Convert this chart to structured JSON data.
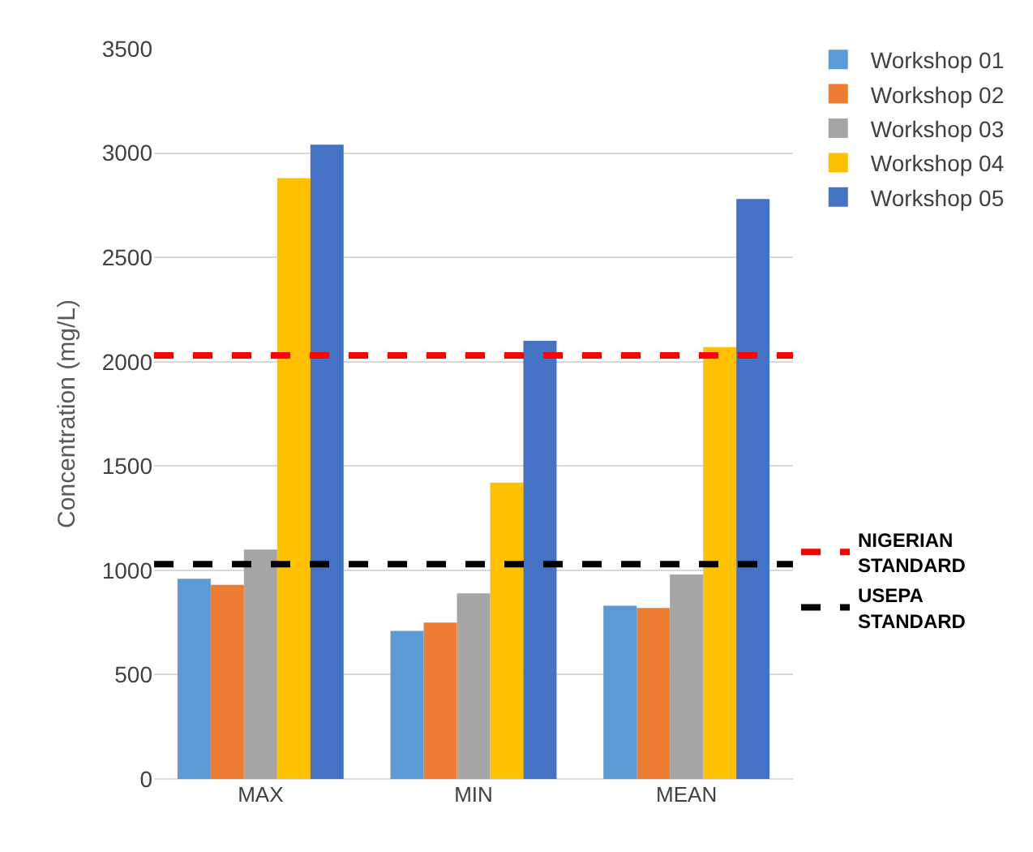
{
  "chart_data": {
    "type": "bar",
    "ylabel": "Concentration (mg/L)",
    "categories": [
      "MAX",
      "MIN",
      "MEAN"
    ],
    "series": [
      {
        "name": "Workshop 01",
        "color": "#5b9bd5",
        "values": [
          960,
          710,
          830
        ]
      },
      {
        "name": "Workshop 02",
        "color": "#ed7d31",
        "values": [
          930,
          750,
          820
        ]
      },
      {
        "name": "Workshop 03",
        "color": "#a5a5a5",
        "values": [
          1100,
          890,
          980
        ]
      },
      {
        "name": "Workshop 04",
        "color": "#ffc000",
        "values": [
          2880,
          1420,
          2070
        ]
      },
      {
        "name": "Workshop 05",
        "color": "#4472c4",
        "values": [
          3040,
          2100,
          2780
        ]
      }
    ],
    "ylim": [
      0,
      3500
    ],
    "yticks": [
      0,
      500,
      1000,
      1500,
      2000,
      2500,
      3000,
      3500
    ],
    "grid": "y",
    "legend": "top right",
    "ref_lines": [
      {
        "axis": "y",
        "value": 2030,
        "label": "NIGERIAN STANDARD",
        "color": "#ff0000",
        "line_style": "dashed"
      },
      {
        "axis": "y",
        "value": 1030,
        "label": "USEPA STANDARD",
        "color": "#000000",
        "line_style": "dashed"
      }
    ]
  }
}
